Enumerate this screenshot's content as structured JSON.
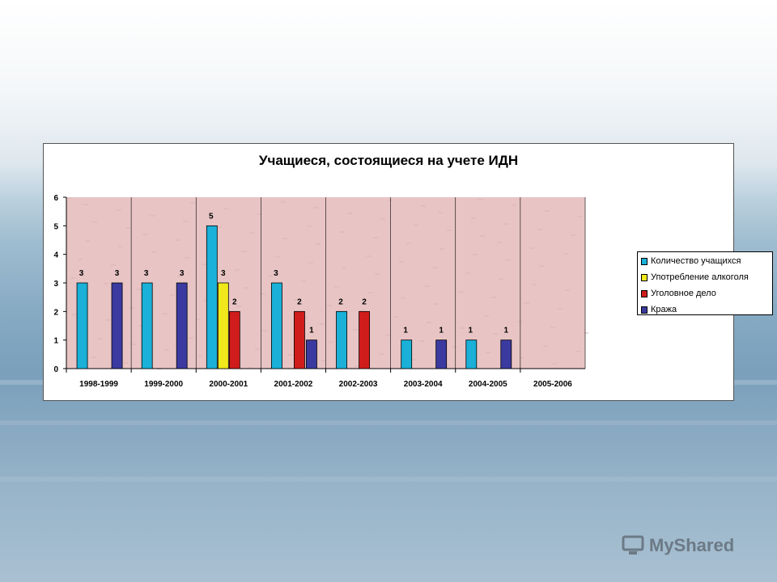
{
  "chart_data": {
    "type": "bar",
    "title": "Учащиеся, состоящиеся на учете ИДН",
    "categories": [
      "1998-1999",
      "1999-2000",
      "2000-2001",
      "2001-2002",
      "2002-2003",
      "2003-2004",
      "2004-2005",
      "2005-2006"
    ],
    "series": [
      {
        "name": "Количество учащихся",
        "color": "#1ab0d8",
        "values": [
          3,
          3,
          5,
          3,
          2,
          1,
          1,
          0
        ]
      },
      {
        "name": "Употребление алкоголя",
        "color": "#f0e81c",
        "values": [
          0,
          0,
          3,
          0,
          0,
          0,
          0,
          0
        ]
      },
      {
        "name": "Уголовное дело",
        "color": "#d01c1c",
        "values": [
          0,
          0,
          2,
          2,
          2,
          0,
          0,
          0
        ]
      },
      {
        "name": "Кража",
        "color": "#3a3aa0",
        "values": [
          3,
          3,
          0,
          1,
          0,
          1,
          1,
          0
        ]
      }
    ],
    "ylim": [
      0,
      6
    ],
    "yticks": [
      "0",
      "1",
      "2",
      "3",
      "4",
      "5",
      "6"
    ],
    "plot_background": "#e8c4c4",
    "grid": "vertical category separators",
    "legend_position": "right"
  },
  "watermark": {
    "text": "MyShared"
  }
}
